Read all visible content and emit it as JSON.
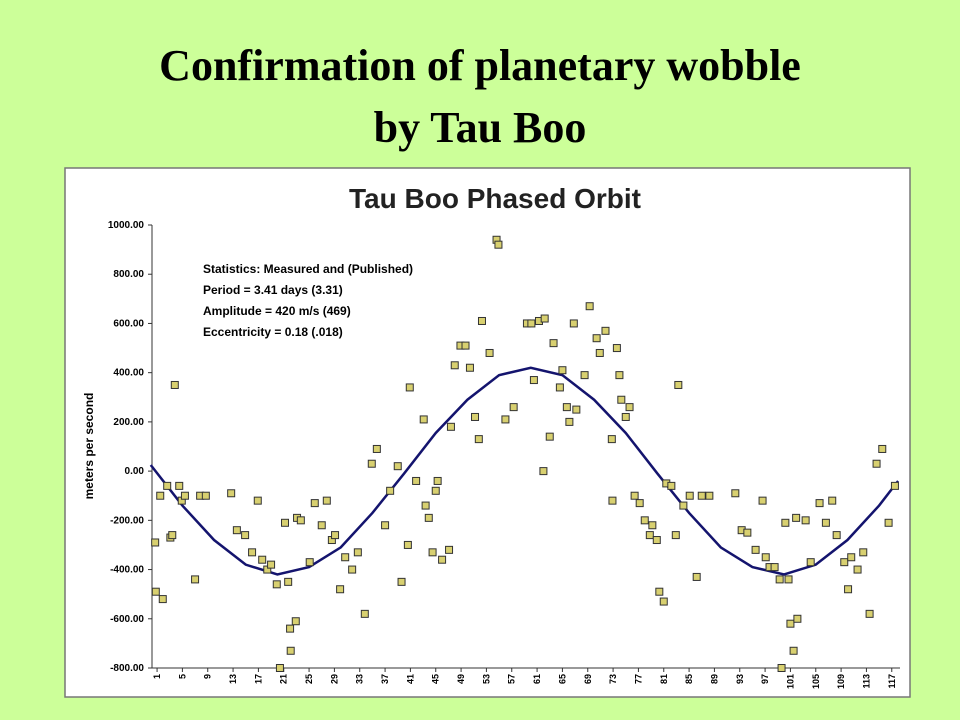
{
  "slide": {
    "title_lines": [
      "Confirmation of planetary wobble",
      "by Tau Boo"
    ]
  },
  "chart_data": {
    "type": "scatter",
    "title": "Tau Boo Phased Orbit",
    "ylabel": "meters per second",
    "annotations": [
      "Statistics: Measured and (Published)",
      "Period = 3.41 days (3.31)",
      "Amplitude = 420 m/s (469)",
      "Eccentricity = 0.18 (.018)"
    ],
    "xlim": [
      0.2,
      118.3
    ],
    "ylim": [
      -800,
      1000
    ],
    "xticks": [
      1,
      5,
      9,
      13,
      17,
      21,
      25,
      29,
      33,
      37,
      41,
      45,
      49,
      53,
      57,
      61,
      65,
      69,
      73,
      77,
      81,
      85,
      89,
      93,
      97,
      101,
      105,
      109,
      113,
      117
    ],
    "yticks": [
      {
        "value": 1000,
        "label": "1000.00"
      },
      {
        "value": 800,
        "label": "800.00"
      },
      {
        "value": 600,
        "label": "600.00"
      },
      {
        "value": 400,
        "label": "400.00"
      },
      {
        "value": 200,
        "label": "200.00"
      },
      {
        "value": 0,
        "label": "0.00"
      },
      {
        "value": -200,
        "label": "-200.00"
      },
      {
        "value": -400,
        "label": "-400.00"
      },
      {
        "value": -600,
        "label": "-600.00"
      },
      {
        "value": -800,
        "label": "-800.00"
      }
    ],
    "points": {
      "color": "#d8d070",
      "x": [
        0.7,
        0.8,
        1.5,
        1.9,
        2.6,
        3.1,
        3.4,
        3.8,
        4.5,
        4.9,
        5.4,
        7.0,
        7.8,
        8.7,
        12.7,
        13.6,
        14.9,
        16.0,
        16.9,
        17.6,
        18.4,
        19.0,
        19.9,
        20.4,
        21.2,
        21.7,
        22.0,
        22.1,
        23.1,
        22.9,
        23.7,
        25.1,
        25.9,
        27.0,
        27.8,
        28.6,
        29.1,
        29.9,
        30.7,
        31.8,
        32.7,
        33.8,
        34.9,
        35.7,
        37.0,
        37.8,
        39.0,
        39.6,
        40.6,
        40.9,
        41.9,
        43.1,
        43.4,
        43.9,
        44.5,
        45.0,
        45.3,
        46.0,
        47.1,
        47.4,
        48.0,
        48.9,
        49.7,
        50.4,
        51.2,
        51.8,
        52.3,
        53.5,
        54.6,
        54.9,
        56.0,
        57.3,
        59.4,
        60.1,
        60.5,
        61.3,
        62.2,
        62.0,
        63.0,
        63.6,
        64.6,
        65.0,
        65.7,
        66.1,
        66.8,
        67.2,
        68.5,
        69.3,
        70.4,
        70.9,
        71.8,
        72.8,
        72.9,
        73.6,
        74.0,
        74.3,
        75.0,
        75.6,
        76.4,
        77.2,
        78.0,
        78.8,
        79.2,
        79.9,
        80.3,
        81.0,
        81.4,
        82.2,
        82.9,
        83.3,
        84.1,
        85.1,
        86.2,
        87.0,
        88.2,
        92.3,
        93.3,
        94.2,
        95.5,
        96.6,
        97.1,
        97.7,
        98.5,
        99.3,
        99.6,
        100.2,
        100.7,
        101.0,
        101.5,
        101.9,
        102.1,
        103.4,
        104.2,
        105.6,
        106.6,
        107.6,
        108.3,
        109.5,
        110.1,
        110.6,
        111.6,
        112.5,
        113.5,
        114.6,
        115.5,
        116.5,
        117.5
      ],
      "values": [
        -290,
        -490,
        -100,
        -520,
        -60,
        -270,
        -260,
        350,
        -60,
        -120,
        -100,
        -440,
        -100,
        -100,
        -90,
        -240,
        -260,
        -330,
        -120,
        -360,
        -400,
        -380,
        -460,
        -800,
        -210,
        -450,
        -640,
        -730,
        -190,
        -610,
        -200,
        -370,
        -130,
        -220,
        -120,
        -280,
        -260,
        -480,
        -350,
        -400,
        -330,
        -580,
        30,
        90,
        -220,
        -80,
        20,
        -450,
        -300,
        340,
        -40,
        210,
        -140,
        -190,
        -330,
        -80,
        -40,
        -360,
        -320,
        180,
        430,
        510,
        510,
        420,
        220,
        130,
        610,
        480,
        940,
        920,
        210,
        260,
        600,
        600,
        370,
        610,
        620,
        0,
        140,
        520,
        340,
        410,
        260,
        200,
        600,
        250,
        390,
        670,
        540,
        480,
        570,
        130,
        -120,
        500,
        390,
        290,
        220,
        260,
        -100,
        -130,
        -200,
        -260,
        -220,
        -280,
        -490,
        -530,
        -50,
        -60,
        -260,
        350,
        -140,
        -100,
        -430,
        -100,
        -100,
        -90,
        -240,
        -250,
        -320,
        -120,
        -350,
        -390,
        -390,
        -440,
        -800,
        -210,
        -440,
        -620,
        -730,
        -190,
        -600,
        -200,
        -370,
        -130,
        -210,
        -120,
        -260,
        -370,
        -480,
        -350,
        -400,
        -330,
        -580,
        30,
        90,
        -210,
        -60
      ]
    },
    "fit": {
      "color": "#14146e",
      "x": [
        0,
        5,
        10,
        15,
        20,
        25,
        30,
        35,
        40,
        45,
        50,
        55,
        60,
        65,
        70,
        75,
        80,
        85,
        90,
        95,
        100,
        105,
        110,
        115,
        118
      ],
      "values": [
        25,
        -140,
        -280,
        -380,
        -420,
        -390,
        -310,
        -170,
        -10,
        155,
        290,
        390,
        420,
        390,
        290,
        155,
        -10,
        -170,
        -310,
        -390,
        -420,
        -380,
        -280,
        -140,
        -40
      ]
    }
  }
}
